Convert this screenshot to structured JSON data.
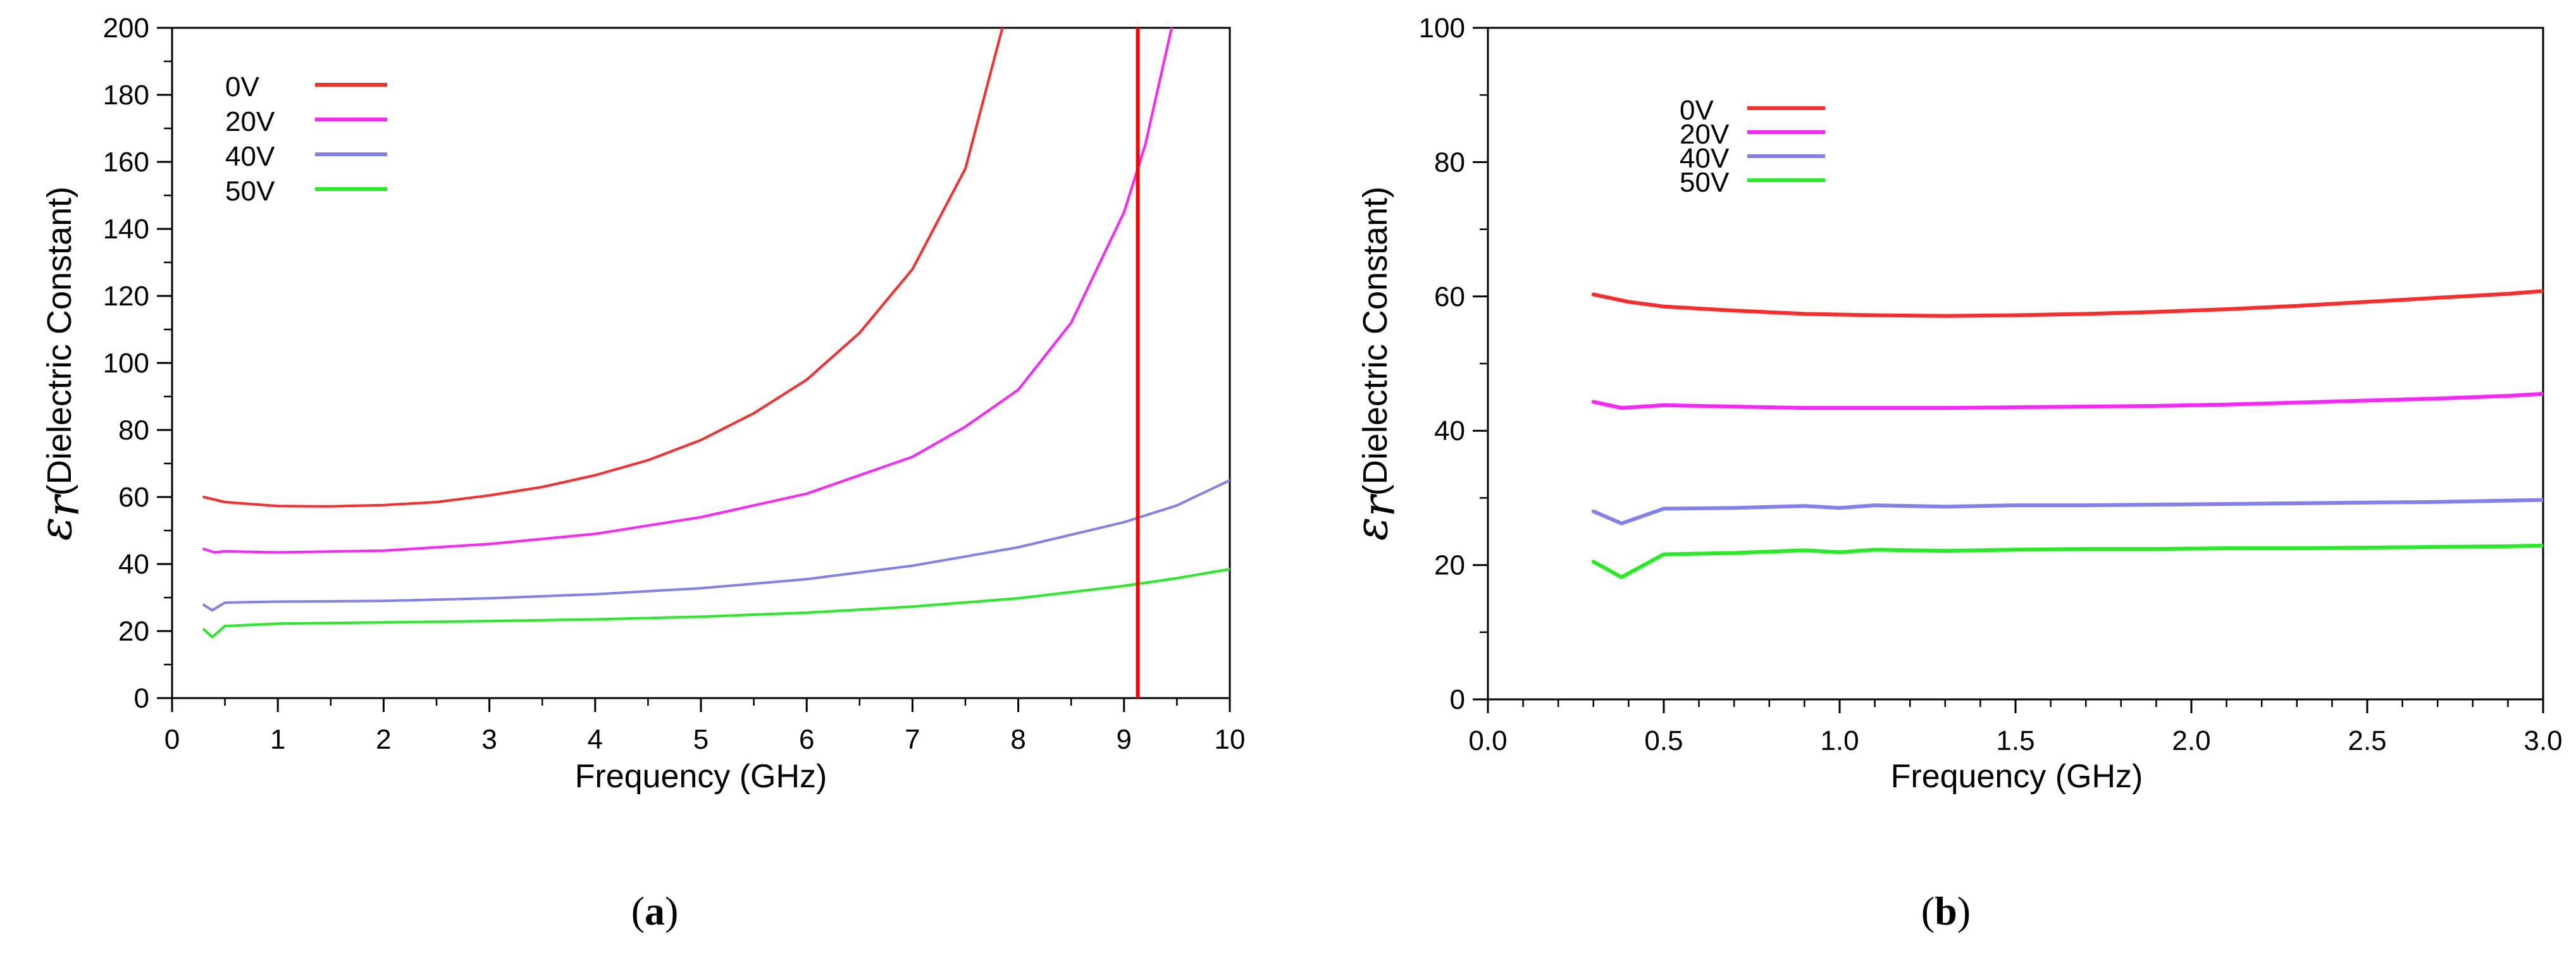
{
  "chart_data": [
    {
      "type": "line",
      "panel_label": "a",
      "xlabel": "Frequency (GHz)",
      "ylabel_symbol": "ε",
      "ylabel_subscript": "r",
      "ylabel": "(Dielectric Constant)",
      "xlim": [
        0,
        10
      ],
      "ylim": [
        0,
        200
      ],
      "x_ticks": [
        0,
        1,
        2,
        3,
        4,
        5,
        6,
        7,
        8,
        9,
        10
      ],
      "x_tick_labels": [
        "0",
        "1",
        "2",
        "3",
        "4",
        "5",
        "6",
        "7",
        "8",
        "9",
        "10"
      ],
      "y_ticks": [
        0,
        20,
        40,
        60,
        80,
        100,
        120,
        140,
        160,
        180,
        200
      ],
      "y_tick_labels": [
        "0",
        "20",
        "40",
        "60",
        "80",
        "100",
        "120",
        "140",
        "160",
        "180",
        "200"
      ],
      "legend_position": "top-left",
      "vertical_marker": {
        "x": 9.13,
        "color": "#ff0000"
      },
      "series": [
        {
          "name": "0V",
          "color": "#ff2a2a",
          "x": [
            0.3,
            0.5,
            1.0,
            1.5,
            2.0,
            2.5,
            3.0,
            3.5,
            4.0,
            4.5,
            5.0,
            5.5,
            6.0,
            6.5,
            7.0,
            7.5,
            7.85
          ],
          "y": [
            60,
            58.5,
            57.3,
            57.2,
            57.6,
            58.5,
            60.5,
            63,
            66.5,
            71,
            77,
            85,
            95,
            109,
            128,
            158,
            200
          ]
        },
        {
          "name": "20V",
          "color": "#ff22ff",
          "x": [
            0.3,
            0.4,
            0.5,
            1.0,
            2.0,
            3.0,
            4.0,
            5.0,
            6.0,
            7.0,
            7.5,
            8.0,
            8.5,
            9.0,
            9.2,
            9.45
          ],
          "y": [
            44.5,
            43.5,
            43.8,
            43.5,
            44,
            46,
            49,
            54,
            61,
            72,
            81,
            92,
            112,
            145,
            165,
            200
          ]
        },
        {
          "name": "40V",
          "color": "#8080ee",
          "x": [
            0.3,
            0.38,
            0.5,
            1.0,
            2.0,
            3.0,
            4.0,
            5.0,
            6.0,
            7.0,
            8.0,
            9.0,
            9.5,
            10.0
          ],
          "y": [
            27.8,
            26.2,
            28.5,
            28.8,
            29,
            29.8,
            31,
            32.8,
            35.5,
            39.5,
            45,
            52.5,
            57.5,
            65
          ]
        },
        {
          "name": "50V",
          "color": "#22ee22",
          "x": [
            0.3,
            0.38,
            0.5,
            1.0,
            2.0,
            3.0,
            4.0,
            5.0,
            6.0,
            7.0,
            8.0,
            9.0,
            9.5,
            10.0
          ],
          "y": [
            20.5,
            18.2,
            21.5,
            22.2,
            22.6,
            23,
            23.5,
            24.3,
            25.5,
            27.3,
            29.8,
            33.5,
            35.8,
            38.5
          ]
        }
      ]
    },
    {
      "type": "line",
      "panel_label": "b",
      "xlabel": "Frequency (GHz)",
      "ylabel_symbol": "ε",
      "ylabel_subscript": "r",
      "ylabel": "(Dielectric Constant)",
      "xlim": [
        0,
        3
      ],
      "ylim": [
        0,
        100
      ],
      "x_ticks": [
        0,
        0.5,
        1.0,
        1.5,
        2.0,
        2.5,
        3.0
      ],
      "x_tick_labels": [
        "0.0",
        "0.5",
        "1.0",
        "1.5",
        "2.0",
        "2.5",
        "3.0"
      ],
      "y_ticks": [
        0,
        20,
        40,
        60,
        80,
        100
      ],
      "y_tick_labels": [
        "0",
        "20",
        "40",
        "60",
        "80",
        "100"
      ],
      "legend_position": "top-left",
      "series": [
        {
          "name": "0V",
          "color": "#ff2a2a",
          "x": [
            0.3,
            0.4,
            0.5,
            0.7,
            0.9,
            1.1,
            1.3,
            1.5,
            1.7,
            1.9,
            2.1,
            2.3,
            2.5,
            2.7,
            2.9,
            3.0
          ],
          "y": [
            60.3,
            59.2,
            58.5,
            57.9,
            57.4,
            57.2,
            57.1,
            57.2,
            57.4,
            57.7,
            58.1,
            58.6,
            59.2,
            59.8,
            60.4,
            60.8
          ]
        },
        {
          "name": "20V",
          "color": "#ff22ff",
          "x": [
            0.3,
            0.38,
            0.5,
            0.7,
            0.9,
            1.1,
            1.3,
            1.5,
            1.7,
            1.9,
            2.1,
            2.3,
            2.5,
            2.7,
            2.9,
            3.0
          ],
          "y": [
            44.3,
            43.4,
            43.8,
            43.6,
            43.4,
            43.4,
            43.4,
            43.5,
            43.6,
            43.7,
            43.9,
            44.2,
            44.5,
            44.8,
            45.2,
            45.5
          ]
        },
        {
          "name": "40V",
          "color": "#8080ee",
          "x": [
            0.3,
            0.38,
            0.5,
            0.7,
            0.9,
            1.0,
            1.1,
            1.3,
            1.5,
            1.7,
            1.9,
            2.1,
            2.3,
            2.5,
            2.7,
            2.9,
            3.0
          ],
          "y": [
            28.0,
            26.2,
            28.4,
            28.5,
            28.8,
            28.5,
            28.9,
            28.7,
            28.9,
            28.9,
            29.0,
            29.1,
            29.2,
            29.3,
            29.4,
            29.6,
            29.7
          ]
        },
        {
          "name": "50V",
          "color": "#22ee22",
          "x": [
            0.3,
            0.38,
            0.5,
            0.7,
            0.9,
            1.0,
            1.1,
            1.3,
            1.5,
            1.7,
            1.9,
            2.1,
            2.3,
            2.5,
            2.7,
            2.9,
            3.0
          ],
          "y": [
            20.5,
            18.2,
            21.6,
            21.8,
            22.2,
            21.9,
            22.3,
            22.1,
            22.3,
            22.4,
            22.4,
            22.5,
            22.5,
            22.6,
            22.7,
            22.8,
            22.9
          ]
        }
      ]
    }
  ]
}
